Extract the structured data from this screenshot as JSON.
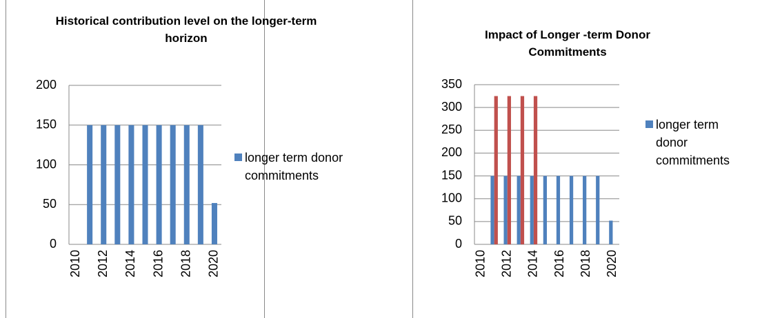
{
  "charts": [
    {
      "chart_data": {
        "type": "bar",
        "title": "Historical contribution level on the longer-term horizon",
        "categories": [
          2010,
          null,
          2012,
          null,
          2014,
          null,
          2016,
          null,
          2018,
          null,
          2020
        ],
        "series": [
          {
            "name": "longer term donor commitments",
            "color": "#4f81bd",
            "values": [
              null,
              150,
              150,
              150,
              150,
              150,
              150,
              150,
              150,
              150,
              52
            ]
          }
        ],
        "ylim": [
          0,
          200
        ],
        "yticks": [
          0,
          50,
          100,
          150,
          200
        ],
        "grid": true,
        "legend": "right"
      }
    },
    {
      "chart_data": {
        "type": "bar",
        "title": "Impact of Longer -term Donor Commitments",
        "categories": [
          2010,
          null,
          2012,
          null,
          2014,
          null,
          2016,
          null,
          2018,
          null,
          2020
        ],
        "series": [
          {
            "name": "longer term donor commitments",
            "color": "#4f81bd",
            "values": [
              null,
              150,
              150,
              150,
              150,
              150,
              150,
              150,
              150,
              150,
              52
            ]
          },
          {
            "color": "#c0504d",
            "values": [
              null,
              325,
              325,
              325,
              325,
              null,
              null,
              null,
              null,
              null,
              null
            ]
          }
        ],
        "ylim": [
          0,
          350
        ],
        "yticks": [
          0,
          50,
          100,
          150,
          200,
          250,
          300,
          350
        ],
        "grid": true,
        "legend": "right"
      }
    }
  ]
}
